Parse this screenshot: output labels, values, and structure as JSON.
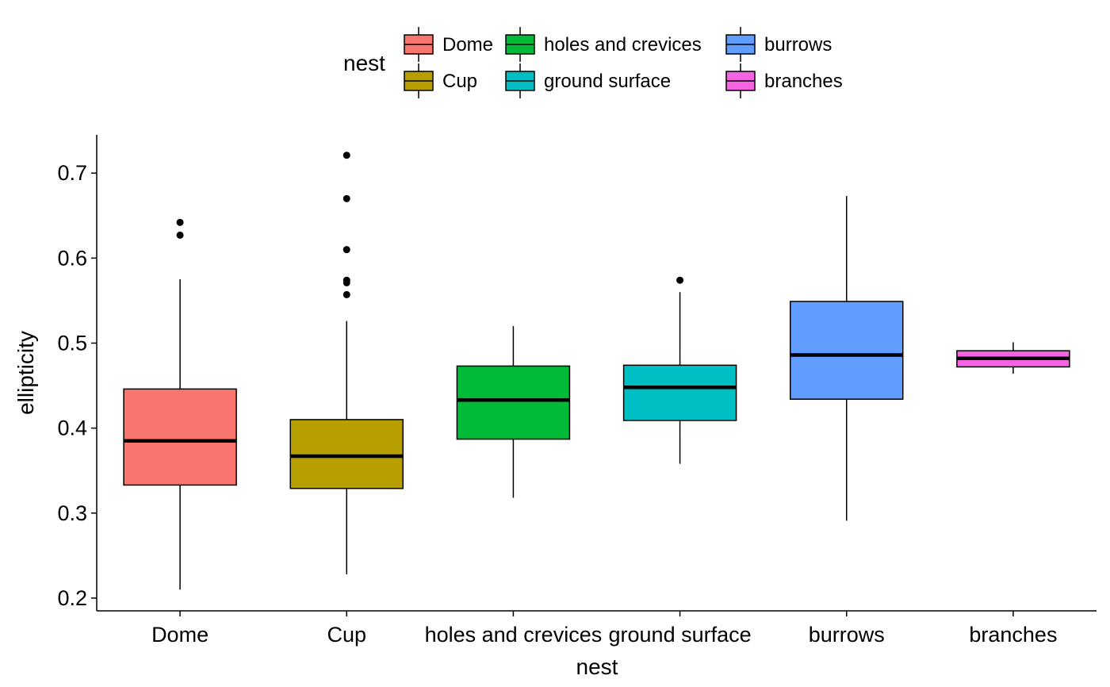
{
  "chart_data": {
    "type": "boxplot",
    "title": "",
    "xlabel": "nest",
    "ylabel": "ellipticity",
    "ylim": [
      0.185,
      0.745
    ],
    "yticks": [
      0.2,
      0.3,
      0.4,
      0.5,
      0.6,
      0.7
    ],
    "ytick_labels": [
      "0.2",
      "0.3",
      "0.4",
      "0.5",
      "0.6",
      "0.7"
    ],
    "grid": false,
    "legend": {
      "title": "nest",
      "position": "top",
      "entries": [
        "Dome",
        "Cup",
        "holes and crevices",
        "ground surface",
        "burrows",
        "branches"
      ]
    },
    "categories": [
      "Dome",
      "Cup",
      "holes and crevices",
      "ground surface",
      "burrows",
      "branches"
    ],
    "series": [
      {
        "category": "Dome",
        "color": "#F8766D",
        "lower_whisker": 0.21,
        "q1": 0.333,
        "median": 0.385,
        "q3": 0.446,
        "upper_whisker": 0.575,
        "outliers": [
          0.627,
          0.642
        ]
      },
      {
        "category": "Cup",
        "color": "#B79F00",
        "lower_whisker": 0.228,
        "q1": 0.329,
        "median": 0.367,
        "q3": 0.41,
        "upper_whisker": 0.526,
        "outliers": [
          0.557,
          0.571,
          0.574,
          0.61,
          0.67,
          0.721
        ]
      },
      {
        "category": "holes and crevices",
        "color": "#00BA38",
        "lower_whisker": 0.318,
        "q1": 0.387,
        "median": 0.433,
        "q3": 0.473,
        "upper_whisker": 0.52,
        "outliers": []
      },
      {
        "category": "ground surface",
        "color": "#00BFC4",
        "lower_whisker": 0.358,
        "q1": 0.409,
        "median": 0.448,
        "q3": 0.474,
        "upper_whisker": 0.56,
        "outliers": [
          0.574
        ]
      },
      {
        "category": "burrows",
        "color": "#619CFF",
        "lower_whisker": 0.291,
        "q1": 0.434,
        "median": 0.486,
        "q3": 0.549,
        "upper_whisker": 0.673,
        "outliers": []
      },
      {
        "category": "branches",
        "color": "#F564E3",
        "lower_whisker": 0.464,
        "q1": 0.472,
        "median": 0.482,
        "q3": 0.491,
        "upper_whisker": 0.501,
        "outliers": []
      }
    ]
  }
}
